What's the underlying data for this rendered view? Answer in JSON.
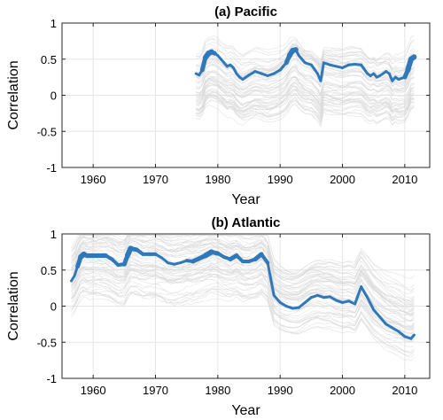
{
  "chart_data": [
    {
      "type": "line",
      "title": "(a) Pacific",
      "xlabel": "Year",
      "ylabel": "Correlation",
      "xlim": [
        1955,
        2014
      ],
      "ylim": [
        -1,
        1
      ],
      "xticks": [
        1960,
        1970,
        1980,
        1990,
        2000,
        2010
      ],
      "yticks": [
        -1,
        -0.5,
        0,
        0.5,
        1
      ],
      "grid": true,
      "series": [
        {
          "color": "#2f78b9",
          "x": [
            1976.5,
            1977,
            1977.5,
            1978,
            1978.5,
            1979,
            1979.5,
            1980,
            1980.5,
            1981,
            1981.5,
            1982,
            1982.5,
            1983,
            1983.5,
            1984,
            1984.5,
            1985,
            1986,
            1987,
            1988,
            1989,
            1990,
            1990.5,
            1991,
            1991.5,
            1992,
            1992.5,
            1993,
            1993.5,
            1994,
            1995,
            1996,
            1996.5,
            1997,
            1998,
            1999,
            2000,
            2001,
            2002,
            2003,
            2004,
            2004.5,
            2005,
            2005.5,
            2006,
            2006.5,
            2007,
            2007.5,
            2008,
            2008.5,
            2009,
            2010,
            2010.5,
            2011,
            2011.5
          ],
          "y": [
            0.3,
            0.28,
            0.35,
            0.52,
            0.58,
            0.6,
            0.58,
            0.55,
            0.5,
            0.45,
            0.4,
            0.42,
            0.38,
            0.3,
            0.25,
            0.22,
            0.25,
            0.28,
            0.33,
            0.3,
            0.27,
            0.3,
            0.35,
            0.4,
            0.45,
            0.55,
            0.62,
            0.63,
            0.55,
            0.5,
            0.45,
            0.42,
            0.3,
            0.2,
            0.45,
            0.42,
            0.4,
            0.38,
            0.42,
            0.43,
            0.42,
            0.3,
            0.27,
            0.3,
            0.25,
            0.27,
            0.3,
            0.33,
            0.3,
            0.2,
            0.25,
            0.22,
            0.25,
            0.35,
            0.5,
            0.53
          ],
          "thick_width_values": [
            3,
            3,
            3,
            5,
            6,
            6,
            5,
            3,
            3,
            3,
            3,
            3,
            3,
            3,
            3,
            3,
            3,
            3,
            3,
            3,
            3,
            3,
            3,
            3,
            3,
            5,
            6,
            6,
            3,
            3,
            3,
            3,
            3,
            3,
            3,
            3,
            3,
            3,
            3,
            3,
            3,
            3,
            3,
            3,
            3,
            3,
            3,
            3,
            3,
            3,
            3,
            3,
            3,
            5,
            6,
            6
          ]
        }
      ],
      "ensemble": {
        "color": "#d9d9d9",
        "count": 60,
        "x_start": 1976.5,
        "x_end": 2011.5,
        "center": 0.2,
        "spread": 0.45
      }
    },
    {
      "type": "line",
      "title": "(b) Atlantic",
      "xlabel": "Year",
      "ylabel": "Correlation",
      "xlim": [
        1955,
        2014
      ],
      "ylim": [
        -1,
        1
      ],
      "xticks": [
        1960,
        1970,
        1980,
        1990,
        2000,
        2010
      ],
      "yticks": [
        -1,
        -0.5,
        0,
        0.5,
        1
      ],
      "grid": true,
      "series": [
        {
          "color": "#2f78b9",
          "x": [
            1956.5,
            1957,
            1957.5,
            1958,
            1958.5,
            1959,
            1960,
            1961,
            1962,
            1963,
            1964,
            1965,
            1965.5,
            1966,
            1967,
            1968,
            1969,
            1970,
            1971,
            1972,
            1973,
            1974,
            1975,
            1976,
            1977,
            1978,
            1979,
            1980,
            1981,
            1982,
            1983,
            1984,
            1985,
            1986,
            1987,
            1988,
            1989,
            1990,
            1991,
            1992,
            1993,
            1994,
            1995,
            1996,
            1997,
            1998,
            1999,
            2000,
            2001,
            2002,
            2003,
            2004,
            2005,
            2006,
            2007,
            2008,
            2009,
            2010,
            2011,
            2011.5
          ],
          "y": [
            0.35,
            0.42,
            0.55,
            0.68,
            0.72,
            0.7,
            0.7,
            0.7,
            0.7,
            0.65,
            0.57,
            0.58,
            0.7,
            0.8,
            0.78,
            0.72,
            0.72,
            0.72,
            0.67,
            0.6,
            0.58,
            0.6,
            0.63,
            0.62,
            0.66,
            0.7,
            0.75,
            0.73,
            0.68,
            0.65,
            0.7,
            0.62,
            0.62,
            0.65,
            0.72,
            0.6,
            0.15,
            0.05,
            0.0,
            -0.03,
            -0.02,
            0.05,
            0.12,
            0.15,
            0.12,
            0.13,
            0.08,
            0.05,
            0.07,
            0.03,
            0.27,
            0.12,
            -0.05,
            -0.15,
            -0.25,
            -0.3,
            -0.35,
            -0.42,
            -0.45,
            -0.4
          ],
          "thick_width_values": [
            3,
            3,
            3,
            5,
            6,
            5,
            5,
            5,
            5,
            4,
            4,
            4,
            5,
            6,
            5,
            4,
            4,
            4,
            3,
            3,
            3,
            3,
            3,
            4,
            5,
            5,
            6,
            5,
            4,
            4,
            5,
            4,
            4,
            4,
            5,
            4,
            3,
            3,
            3,
            3,
            3,
            3,
            3,
            3,
            3,
            3,
            3,
            3,
            3,
            3,
            3,
            3,
            3,
            3,
            3,
            3,
            3,
            3,
            3,
            3
          ]
        }
      ],
      "ensemble": {
        "color": "#d9d9d9",
        "count": 60,
        "x_start": 1956.5,
        "x_end": 2011.5,
        "center": 0.35,
        "spread": 0.5
      }
    }
  ]
}
